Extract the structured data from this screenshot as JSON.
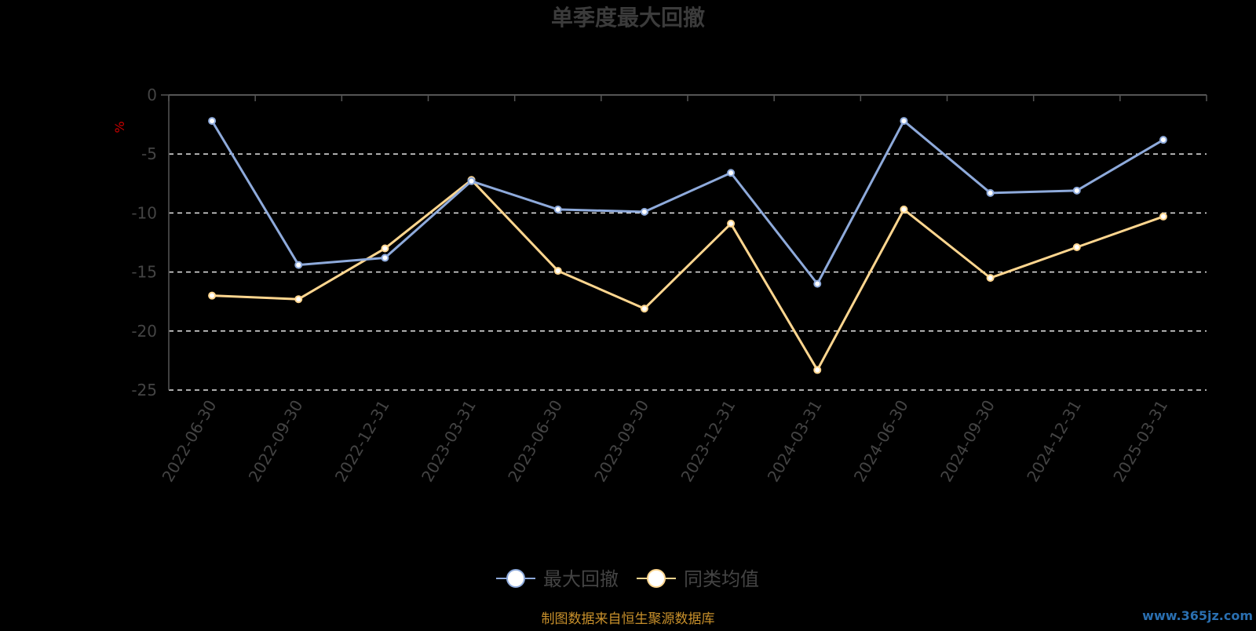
{
  "chart_data": {
    "type": "line",
    "title": "单季度最大回撤",
    "ylabel": "%",
    "ylim": [
      -25,
      0
    ],
    "yticks": [
      0,
      -5,
      -10,
      -15,
      -20,
      -25
    ],
    "categories": [
      "2022-06-30",
      "2022-09-30",
      "2022-12-31",
      "2023-03-31",
      "2023-06-30",
      "2023-09-30",
      "2023-12-31",
      "2024-03-31",
      "2024-06-30",
      "2024-09-30",
      "2024-12-31",
      "2025-03-31"
    ],
    "series": [
      {
        "name": "最大回撤",
        "color": "#8eaadb",
        "values": [
          -2.2,
          -14.4,
          -13.8,
          -7.3,
          -9.7,
          -9.9,
          -6.6,
          -16.0,
          -2.2,
          -8.3,
          -8.1,
          -3.8
        ]
      },
      {
        "name": "同类均值",
        "color": "#ffd68f",
        "values": [
          -17.0,
          -17.3,
          -13.0,
          -7.2,
          -14.9,
          -18.1,
          -10.9,
          -23.3,
          -9.7,
          -15.5,
          -12.9,
          -10.3
        ]
      }
    ],
    "grid": true,
    "legend": "bottom-center"
  },
  "footer": {
    "source": "制图数据来自恒生聚源数据库",
    "watermark": "www.365jz.com"
  }
}
